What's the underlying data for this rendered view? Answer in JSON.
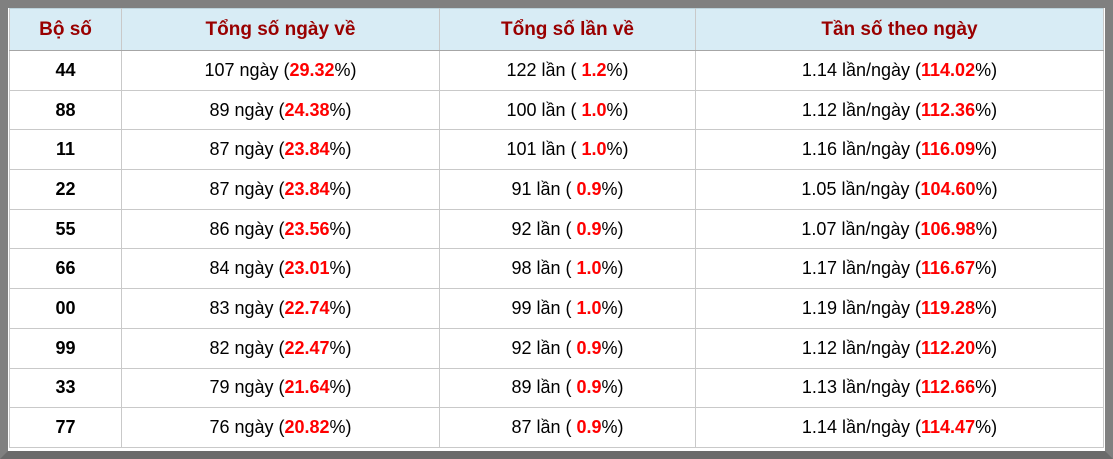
{
  "colors": {
    "frame_border": "#808080",
    "header_bg": "#d8ecf5",
    "header_text": "#990000",
    "percent_red": "#ff0000",
    "cell_border": "#c9c9c9",
    "body_text": "#000000"
  },
  "table": {
    "headers": [
      "Bộ số",
      "Tổng số ngày về",
      "Tổng số lần về",
      "Tần số theo ngày"
    ],
    "labels": {
      "pct_close": "%)"
    },
    "rows": [
      {
        "num": "44",
        "days_prefix": "107 ngày (",
        "days_pct": "29.32",
        "times_prefix": "122 lần (",
        "times_pct": " 1.2",
        "freq_prefix": "1.14 lần/ngày (",
        "freq_pct": "114.02"
      },
      {
        "num": "88",
        "days_prefix": "89 ngày (",
        "days_pct": "24.38",
        "times_prefix": "100 lần (",
        "times_pct": " 1.0",
        "freq_prefix": "1.12 lần/ngày (",
        "freq_pct": "112.36"
      },
      {
        "num": "11",
        "days_prefix": "87 ngày (",
        "days_pct": "23.84",
        "times_prefix": "101 lần (",
        "times_pct": " 1.0",
        "freq_prefix": "1.16 lần/ngày (",
        "freq_pct": "116.09"
      },
      {
        "num": "22",
        "days_prefix": "87 ngày (",
        "days_pct": "23.84",
        "times_prefix": "91 lần (",
        "times_pct": " 0.9",
        "freq_prefix": "1.05 lần/ngày (",
        "freq_pct": "104.60"
      },
      {
        "num": "55",
        "days_prefix": "86 ngày (",
        "days_pct": "23.56",
        "times_prefix": "92 lần (",
        "times_pct": " 0.9",
        "freq_prefix": "1.07 lần/ngày (",
        "freq_pct": "106.98"
      },
      {
        "num": "66",
        "days_prefix": "84 ngày (",
        "days_pct": "23.01",
        "times_prefix": "98 lần (",
        "times_pct": " 1.0",
        "freq_prefix": "1.17 lần/ngày (",
        "freq_pct": "116.67"
      },
      {
        "num": "00",
        "days_prefix": "83 ngày (",
        "days_pct": "22.74",
        "times_prefix": "99 lần (",
        "times_pct": " 1.0",
        "freq_prefix": "1.19 lần/ngày (",
        "freq_pct": "119.28"
      },
      {
        "num": "99",
        "days_prefix": "82 ngày (",
        "days_pct": "22.47",
        "times_prefix": "92 lần (",
        "times_pct": " 0.9",
        "freq_prefix": "1.12 lần/ngày (",
        "freq_pct": "112.20"
      },
      {
        "num": "33",
        "days_prefix": "79 ngày (",
        "days_pct": "21.64",
        "times_prefix": "89 lần (",
        "times_pct": " 0.9",
        "freq_prefix": "1.13 lần/ngày (",
        "freq_pct": "112.66"
      },
      {
        "num": "77",
        "days_prefix": "76 ngày (",
        "days_pct": "20.82",
        "times_prefix": "87 lần (",
        "times_pct": " 0.9",
        "freq_prefix": "1.14 lần/ngày (",
        "freq_pct": "114.47"
      }
    ]
  }
}
